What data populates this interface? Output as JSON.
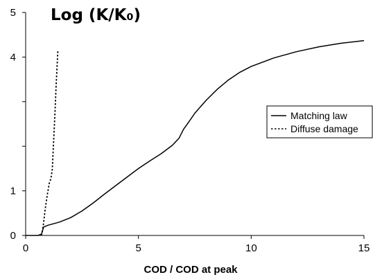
{
  "chart_data": {
    "type": "line",
    "title": "Log (K/K₀)",
    "xlabel": "COD / COD at peak",
    "ylabel": "",
    "xlim": [
      0,
      15
    ],
    "ylim": [
      0,
      5
    ],
    "x_ticks": [
      0,
      5,
      10,
      15
    ],
    "x_tick_labels": [
      "0",
      "5",
      "10",
      "15"
    ],
    "y_ticks": [
      0,
      1,
      4,
      5
    ],
    "y_tick_labels": [
      "0",
      "1",
      "4",
      "5"
    ],
    "y_minor_ticks": [
      2,
      3
    ],
    "grid": false,
    "legend_position": "right",
    "series": [
      {
        "name": "Matching law",
        "style": "solid",
        "color": "#000000",
        "points": [
          [
            0.0,
            0.0
          ],
          [
            0.55,
            0.0
          ],
          [
            0.7,
            0.03
          ],
          [
            0.8,
            0.19
          ],
          [
            1.0,
            0.23
          ],
          [
            1.5,
            0.3
          ],
          [
            2.0,
            0.4
          ],
          [
            2.5,
            0.55
          ],
          [
            3.0,
            0.73
          ],
          [
            3.5,
            0.93
          ],
          [
            4.0,
            1.12
          ],
          [
            4.5,
            1.31
          ],
          [
            5.0,
            1.5
          ],
          [
            5.5,
            1.67
          ],
          [
            6.0,
            1.83
          ],
          [
            6.5,
            2.02
          ],
          [
            6.8,
            2.18
          ],
          [
            7.0,
            2.38
          ],
          [
            7.2,
            2.52
          ],
          [
            7.5,
            2.74
          ],
          [
            8.0,
            3.03
          ],
          [
            8.5,
            3.28
          ],
          [
            9.0,
            3.49
          ],
          [
            9.5,
            3.66
          ],
          [
            10.0,
            3.79
          ],
          [
            11.0,
            3.98
          ],
          [
            12.0,
            4.12
          ],
          [
            13.0,
            4.23
          ],
          [
            14.0,
            4.31
          ],
          [
            15.0,
            4.37
          ]
        ]
      },
      {
        "name": "Diffuse damage",
        "style": "dotted",
        "color": "#000000",
        "points": [
          [
            0.7,
            0.0
          ],
          [
            0.78,
            0.22
          ],
          [
            0.86,
            0.57
          ],
          [
            0.95,
            0.88
          ],
          [
            1.05,
            1.18
          ],
          [
            1.12,
            1.27
          ],
          [
            1.18,
            1.48
          ],
          [
            1.24,
            2.1
          ],
          [
            1.3,
            2.75
          ],
          [
            1.35,
            3.35
          ],
          [
            1.4,
            3.85
          ],
          [
            1.43,
            4.15
          ]
        ]
      }
    ]
  }
}
